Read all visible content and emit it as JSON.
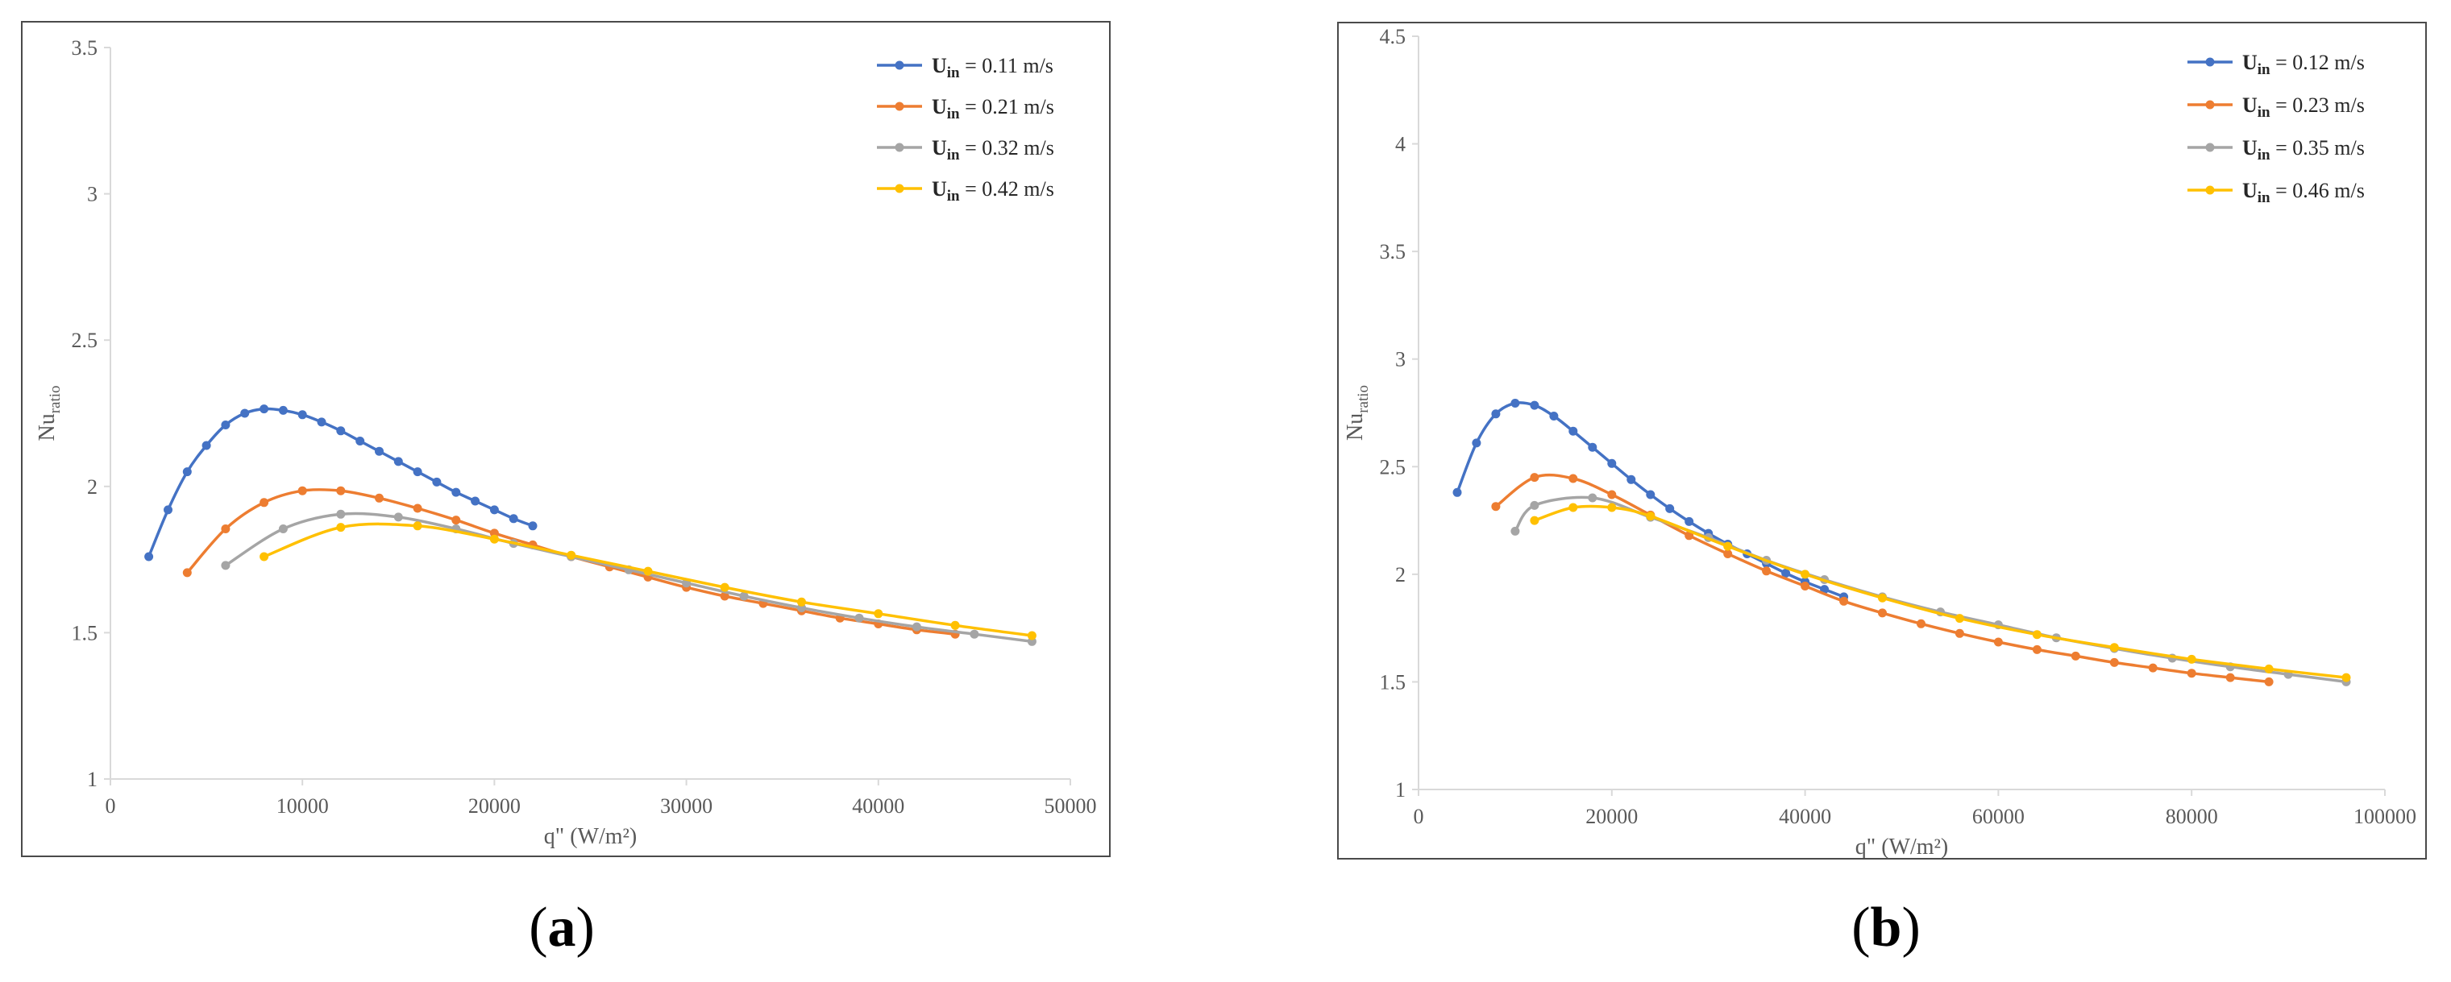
{
  "colors": {
    "s1": "#4472c4",
    "s2": "#ed7d31",
    "s3": "#a5a5a5",
    "s4": "#ffc000",
    "axis": "#d9d9d9",
    "text": "#595959"
  },
  "chart_data": [
    {
      "type": "line",
      "panel_label": "(a)",
      "panel_letter": "a",
      "xlabel": "q\" (W/m²)",
      "ylabel_main": "Nu",
      "ylabel_sub": "ratio",
      "xlim": [
        0,
        50000
      ],
      "ylim": [
        1,
        3.5
      ],
      "xticks": [
        0,
        10000,
        20000,
        30000,
        40000,
        50000
      ],
      "yticks": [
        1,
        1.5,
        2,
        2.5,
        3,
        3.5
      ],
      "legend_position": "top-right",
      "series": [
        {
          "name_main": "U",
          "name_sub": "in",
          "name_rest": " = 0.11 m/s",
          "color": "#4472c4",
          "x": [
            2000,
            3000,
            4000,
            5000,
            6000,
            7000,
            8000,
            9000,
            10000,
            11000,
            12000,
            13000,
            14000,
            15000,
            16000,
            17000,
            18000,
            19000,
            20000,
            21000,
            22000
          ],
          "y": [
            1.76,
            1.92,
            2.05,
            2.14,
            2.21,
            2.25,
            2.265,
            2.26,
            2.245,
            2.22,
            2.19,
            2.155,
            2.12,
            2.085,
            2.05,
            2.015,
            1.98,
            1.95,
            1.92,
            1.89,
            1.865
          ]
        },
        {
          "name_main": "U",
          "name_sub": "in",
          "name_rest": " = 0.21 m/s",
          "color": "#ed7d31",
          "x": [
            4000,
            6000,
            8000,
            10000,
            12000,
            14000,
            16000,
            18000,
            20000,
            22000,
            24000,
            26000,
            28000,
            30000,
            32000,
            34000,
            36000,
            38000,
            40000,
            42000,
            44000
          ],
          "y": [
            1.705,
            1.855,
            1.945,
            1.985,
            1.985,
            1.96,
            1.925,
            1.885,
            1.84,
            1.8,
            1.76,
            1.725,
            1.69,
            1.655,
            1.625,
            1.6,
            1.575,
            1.55,
            1.53,
            1.51,
            1.495
          ]
        },
        {
          "name_main": "U",
          "name_sub": "in",
          "name_rest": " = 0.32 m/s",
          "color": "#a5a5a5",
          "x": [
            6000,
            9000,
            12000,
            15000,
            18000,
            21000,
            24000,
            27000,
            30000,
            33000,
            36000,
            39000,
            42000,
            45000,
            48000
          ],
          "y": [
            1.73,
            1.855,
            1.905,
            1.895,
            1.855,
            1.805,
            1.76,
            1.715,
            1.67,
            1.625,
            1.585,
            1.55,
            1.52,
            1.495,
            1.47
          ]
        },
        {
          "name_main": "U",
          "name_sub": "in",
          "name_rest": " = 0.42 m/s",
          "color": "#ffc000",
          "x": [
            8000,
            12000,
            16000,
            20000,
            24000,
            28000,
            32000,
            36000,
            40000,
            44000,
            48000
          ],
          "y": [
            1.76,
            1.86,
            1.865,
            1.82,
            1.765,
            1.71,
            1.655,
            1.605,
            1.565,
            1.525,
            1.49
          ]
        }
      ]
    },
    {
      "type": "line",
      "panel_label": "(b)",
      "panel_letter": "b",
      "xlabel": "q\" (W/m²)",
      "ylabel_main": "Nu",
      "ylabel_sub": "ratio",
      "xlim": [
        0,
        100000
      ],
      "ylim": [
        1,
        4.5
      ],
      "xticks": [
        0,
        20000,
        40000,
        60000,
        80000,
        100000
      ],
      "yticks": [
        1,
        1.5,
        2,
        2.5,
        3,
        3.5,
        4,
        4.5
      ],
      "legend_position": "top-right",
      "series": [
        {
          "name_main": "U",
          "name_sub": "in",
          "name_rest": " = 0.12 m/s",
          "color": "#4472c4",
          "x": [
            4000,
            6000,
            8000,
            10000,
            12000,
            14000,
            16000,
            18000,
            20000,
            22000,
            24000,
            26000,
            28000,
            30000,
            32000,
            34000,
            36000,
            38000,
            40000,
            42000,
            44000
          ],
          "y": [
            2.38,
            2.61,
            2.745,
            2.795,
            2.785,
            2.735,
            2.665,
            2.59,
            2.515,
            2.44,
            2.37,
            2.305,
            2.245,
            2.19,
            2.14,
            2.095,
            2.05,
            2.005,
            1.965,
            1.93,
            1.895
          ]
        },
        {
          "name_main": "U",
          "name_sub": "in",
          "name_rest": " = 0.23 m/s",
          "color": "#ed7d31",
          "x": [
            8000,
            12000,
            16000,
            20000,
            24000,
            28000,
            32000,
            36000,
            40000,
            44000,
            48000,
            52000,
            56000,
            60000,
            64000,
            68000,
            72000,
            76000,
            80000,
            84000,
            88000
          ],
          "y": [
            2.315,
            2.45,
            2.445,
            2.37,
            2.275,
            2.18,
            2.095,
            2.015,
            1.945,
            1.875,
            1.82,
            1.77,
            1.725,
            1.685,
            1.65,
            1.62,
            1.59,
            1.565,
            1.54,
            1.52,
            1.5
          ]
        },
        {
          "name_main": "U",
          "name_sub": "in",
          "name_rest": " = 0.35 m/s",
          "color": "#a5a5a5",
          "x": [
            10000,
            12000,
            18000,
            24000,
            30000,
            36000,
            42000,
            48000,
            54000,
            60000,
            66000,
            72000,
            78000,
            84000,
            90000,
            96000
          ],
          "y": [
            2.2,
            2.32,
            2.355,
            2.265,
            2.17,
            2.065,
            1.975,
            1.895,
            1.825,
            1.765,
            1.705,
            1.655,
            1.61,
            1.57,
            1.535,
            1.5
          ]
        },
        {
          "name_main": "U",
          "name_sub": "in",
          "name_rest": " = 0.46 m/s",
          "color": "#ffc000",
          "x": [
            12000,
            16000,
            20000,
            24000,
            32000,
            40000,
            48000,
            56000,
            64000,
            72000,
            80000,
            88000,
            96000
          ],
          "y": [
            2.25,
            2.31,
            2.31,
            2.27,
            2.13,
            2.0,
            1.89,
            1.795,
            1.72,
            1.66,
            1.605,
            1.56,
            1.52
          ]
        }
      ]
    }
  ]
}
